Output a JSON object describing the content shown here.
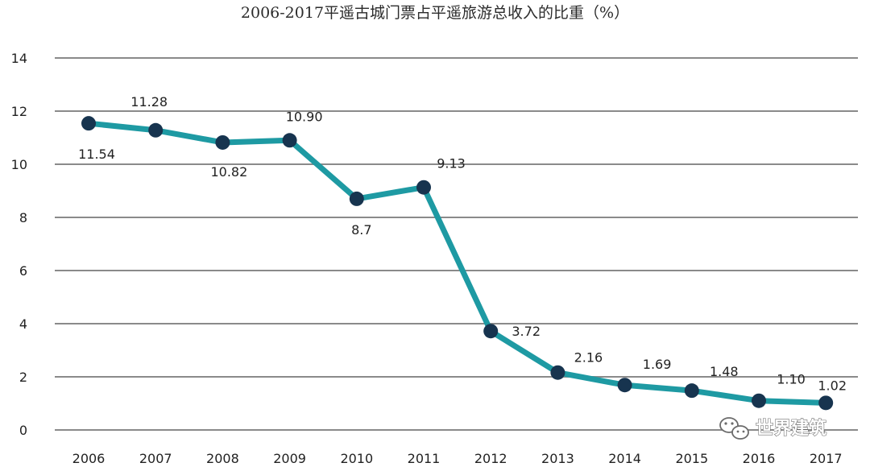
{
  "chart_data": {
    "type": "line",
    "title": "2006-2017平遥古城门票占平遥旅游总收入的比重（%）",
    "xlabel": "",
    "ylabel": "",
    "ylim": [
      0,
      14
    ],
    "yticks": [
      "0",
      "2",
      "4",
      "6",
      "8",
      "10",
      "12",
      "14"
    ],
    "categories": [
      "2006",
      "2007",
      "2008",
      "2009",
      "2010",
      "2011",
      "2012",
      "2013",
      "2014",
      "2015",
      "2016",
      "2017"
    ],
    "series": [
      {
        "values": [
          11.54,
          11.28,
          10.82,
          10.9,
          8.7,
          9.13,
          3.72,
          2.16,
          1.69,
          1.48,
          1.1,
          1.02
        ],
        "labels": [
          "11.54",
          "11.28",
          "10.82",
          "10.90",
          "8.7",
          "9.13",
          "3.72",
          "2.16",
          "1.69",
          "1.48",
          "1.10",
          "1.02"
        ],
        "line_color": "#1e9aa3",
        "marker_color": "#17344f"
      }
    ],
    "grid": true,
    "legend": "none"
  },
  "watermark": {
    "text": "世界建筑",
    "icon": "wechat-icon"
  },
  "colors": {
    "grid": "#8a8a8a",
    "text": "#222222"
  }
}
